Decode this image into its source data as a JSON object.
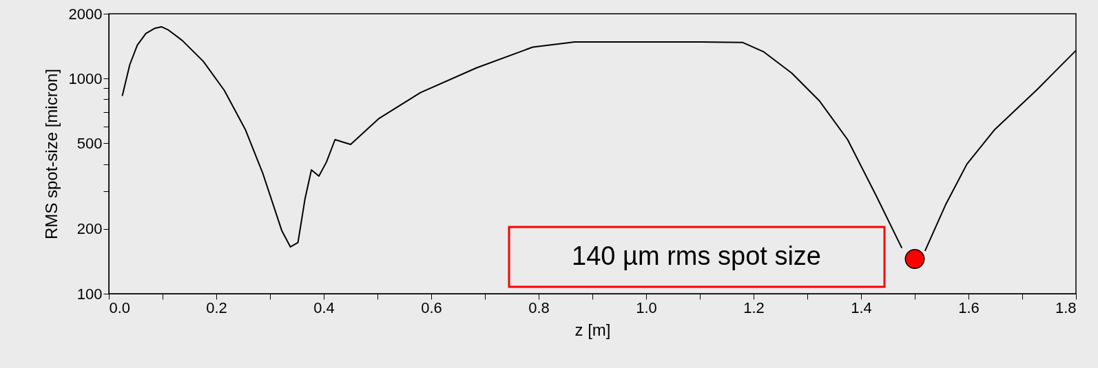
{
  "chart_data": {
    "type": "line",
    "xlabel": "z [m]",
    "ylabel": "RMS spot-size [micron]",
    "log": "y",
    "xlim": [
      0,
      1.8
    ],
    "ylim": [
      100,
      2000
    ],
    "xticks": [
      {
        "value": 0,
        "label": "0.0"
      },
      {
        "value": 0.1,
        "label": null
      },
      {
        "value": 0.2,
        "label": "0.2"
      },
      {
        "value": 0.3,
        "label": null
      },
      {
        "value": 0.4,
        "label": "0.4"
      },
      {
        "value": 0.5,
        "label": null
      },
      {
        "value": 0.6,
        "label": "0.6"
      },
      {
        "value": 0.7,
        "label": null
      },
      {
        "value": 0.8,
        "label": "0.8"
      },
      {
        "value": 0.9,
        "label": null
      },
      {
        "value": 1,
        "label": "1.0"
      },
      {
        "value": 1.1,
        "label": null
      },
      {
        "value": 1.2,
        "label": "1.2"
      },
      {
        "value": 1.3,
        "label": null
      },
      {
        "value": 1.4,
        "label": "1.4"
      },
      {
        "value": 1.5,
        "label": null
      },
      {
        "value": 1.6,
        "label": "1.6"
      },
      {
        "value": 1.7,
        "label": null
      },
      {
        "value": 1.8,
        "label": "1.8"
      }
    ],
    "yticks": [
      100,
      200,
      {
        "value": 300,
        "label": null
      },
      {
        "value": 400,
        "label": null
      },
      500,
      {
        "value": 600,
        "label": null
      },
      {
        "value": 700,
        "label": null
      },
      {
        "value": 800,
        "label": null
      },
      {
        "value": 900,
        "label": null
      },
      1000,
      2000
    ],
    "grid": false,
    "series": [
      {
        "type": "line",
        "color": "#000000",
        "x": [
          0.025,
          0.039,
          0.053,
          0.069,
          0.085,
          0.098,
          0.111,
          0.137,
          0.176,
          0.215,
          0.254,
          0.287,
          0.322,
          0.338,
          0.352,
          0.365,
          0.377,
          0.391,
          0.405,
          0.421,
          0.45,
          0.502,
          0.58,
          0.684,
          0.789,
          0.867,
          1.102,
          1.18,
          1.219,
          1.271,
          1.323,
          1.375,
          1.428,
          1.476,
          1.49,
          1.506,
          1.519,
          1.558,
          1.597,
          1.649,
          1.728,
          1.8
        ],
        "values": [
          830,
          1160,
          1430,
          1620,
          1710,
          1740,
          1680,
          1500,
          1200,
          880,
          580,
          360,
          196,
          165,
          173,
          275,
          376,
          352,
          409,
          520,
          494,
          650,
          860,
          1120,
          1400,
          1480,
          1480,
          1470,
          1330,
          1060,
          785,
          520,
          286,
          163,
          null,
          null,
          158,
          261,
          400,
          580,
          890,
          1350
        ]
      },
      {
        "type": "scatter",
        "color": "#ff0000",
        "marker": "circle",
        "x": [
          1.5
        ],
        "values": [
          145
        ]
      }
    ],
    "annotations": [
      "140 µm rms spot size"
    ]
  }
}
